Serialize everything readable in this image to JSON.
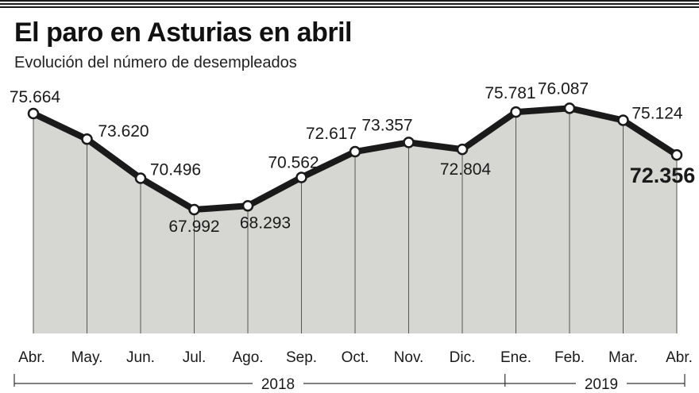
{
  "header": {
    "title": "El paro en Asturias en abril",
    "subtitle": "Evolución del número de desempleados"
  },
  "colors": {
    "area_fill": "#d6d6d2",
    "line": "#1a1a1a",
    "marker_fill": "#ffffff"
  },
  "chart_data": {
    "type": "area",
    "title": "El paro en Asturias en abril",
    "subtitle": "Evolución del número de desempleados",
    "categories": [
      "Abr.",
      "May.",
      "Jun.",
      "Jul.",
      "Ago.",
      "Sep.",
      "Oct.",
      "Nov.",
      "Dic.",
      "Ene.",
      "Feb.",
      "Mar.",
      "Abr."
    ],
    "values": [
      75664,
      73620,
      70496,
      67992,
      68293,
      70562,
      72617,
      73357,
      72804,
      75781,
      76087,
      75124,
      72356
    ],
    "value_labels": [
      "75.664",
      "73.620",
      "70.496",
      "67.992",
      "68.293",
      "70.562",
      "72.617",
      "73.357",
      "72.804",
      "75.781",
      "76.087",
      "75.124",
      "72.356"
    ],
    "year_groups": [
      {
        "label": "2018",
        "from": 0,
        "to": 8
      },
      {
        "label": "2019",
        "from": 9,
        "to": 12
      }
    ],
    "highlight_index": 12,
    "ylim": [
      20000,
      80000
    ],
    "grid": "vertical",
    "legend": "none"
  }
}
